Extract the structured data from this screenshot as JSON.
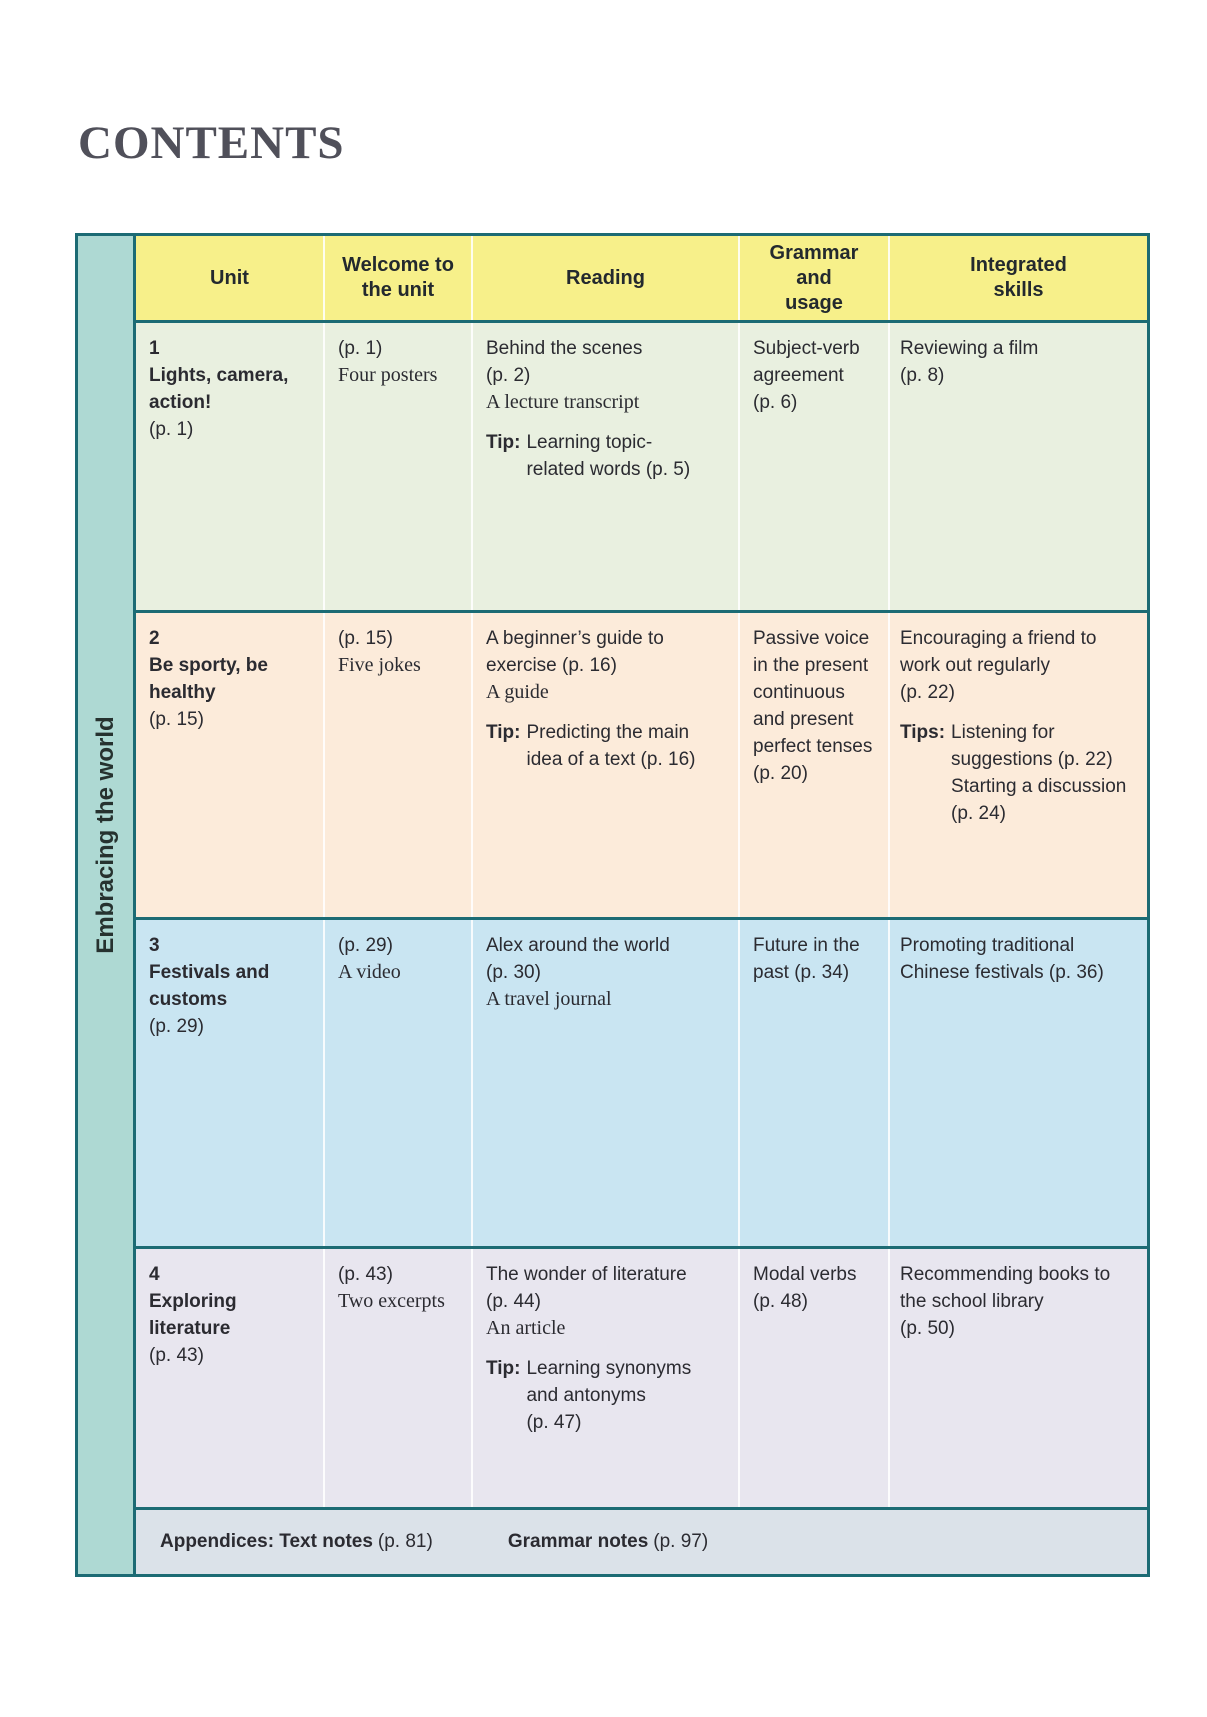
{
  "title": "CONTENTS",
  "sidebar": {
    "label": "Embracing the world"
  },
  "colors": {
    "border": "#1c6b74",
    "header_bg": "#f7f08a",
    "sidebar_bg": "#aed9d3",
    "row1_bg": "#e9f0e0",
    "row2_bg": "#fcebda",
    "row3_bg": "#c9e5f2",
    "row4_bg": "#e8e6ef",
    "appendix_bg": "#dbe2e9",
    "title_color": "#50505a",
    "text_color": "#2b2b31"
  },
  "headers": {
    "unit": "Unit",
    "welcome": "Welcome to\nthe unit",
    "reading": "Reading",
    "grammar": "Grammar\nand\nusage",
    "skills": "Integrated\nskills"
  },
  "units": [
    {
      "number": "1",
      "title": "Lights, camera,\naction!",
      "page": "(p. 1)",
      "welcome": {
        "page": "(p. 1)",
        "item": "Four posters"
      },
      "reading": {
        "main": "Behind the scenes\n(p. 2)",
        "genre": "A lecture transcript",
        "tip_label": "Tip:",
        "tip_text": "Learning topic-\nrelated words (p. 5)"
      },
      "grammar": "Subject-verb\nagreement\n(p. 6)",
      "skills": {
        "main": "Reviewing a film\n(p. 8)"
      }
    },
    {
      "number": "2",
      "title": "Be sporty, be\nhealthy",
      "page": "(p. 15)",
      "welcome": {
        "page": "(p. 15)",
        "item": "Five jokes"
      },
      "reading": {
        "main": "A beginner’s guide to\nexercise (p. 16)",
        "genre": "A guide",
        "tip_label": "Tip:",
        "tip_text": "Predicting the main\nidea of a text (p. 16)"
      },
      "grammar": "Passive voice\nin the present\ncontinuous\nand present\nperfect tenses\n(p. 20)",
      "skills": {
        "main": "Encouraging a friend to\nwork out regularly\n(p. 22)",
        "tip_label": "Tips:",
        "tip_text": "Listening for\nsuggestions (p. 22)\nStarting a discussion\n(p. 24)"
      }
    },
    {
      "number": "3",
      "title": "Festivals and\ncustoms",
      "page": "(p. 29)",
      "welcome": {
        "page": "(p. 29)",
        "item": "A video"
      },
      "reading": {
        "main": "Alex around the world\n(p. 30)",
        "genre": "A travel journal"
      },
      "grammar": "Future in the\npast (p. 34)",
      "skills": {
        "main": "Promoting traditional\nChinese festivals (p. 36)"
      }
    },
    {
      "number": "4",
      "title": "Exploring\nliterature",
      "page": "(p. 43)",
      "welcome": {
        "page": "(p. 43)",
        "item": "Two excerpts"
      },
      "reading": {
        "main": "The wonder of literature\n(p. 44)",
        "genre": "An article",
        "tip_label": "Tip:",
        "tip_text": "Learning synonyms\nand antonyms\n(p. 47)"
      },
      "grammar": "Modal verbs\n(p. 48)",
      "skills": {
        "main": "Recommending books to\nthe school library\n(p. 50)"
      }
    }
  ],
  "appendices": {
    "label1": "Appendices: Text notes",
    "page1": "(p. 81)",
    "label2": "Grammar notes",
    "page2": "(p. 97)"
  }
}
